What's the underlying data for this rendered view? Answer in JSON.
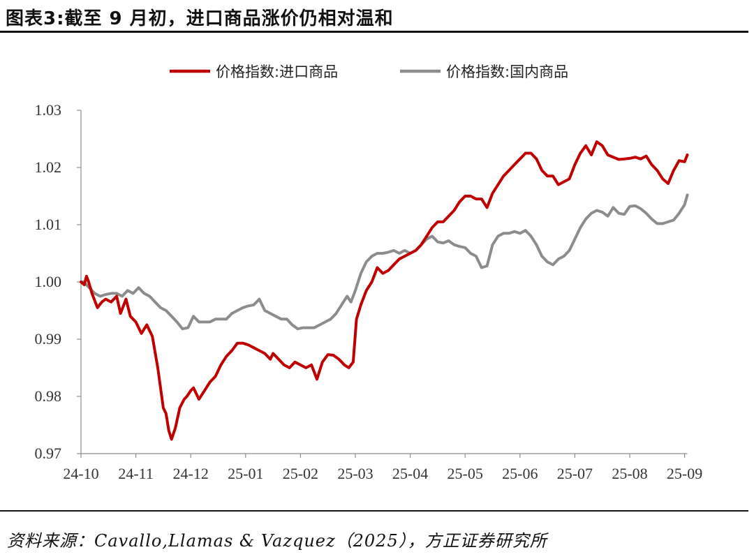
{
  "title": "图表3:截至 9 月初，进口商品涨价仍相对温和",
  "source": "资料来源：Cavallo,Llamas & Vazquez（2025），方正证券研究所",
  "chart_data": {
    "type": "line",
    "title": "图表3:截至 9 月初，进口商品涨价仍相对温和",
    "xlabel": "",
    "ylabel": "",
    "x_ticks": [
      "24-10",
      "24-11",
      "24-12",
      "25-01",
      "25-02",
      "25-03",
      "25-04",
      "25-05",
      "25-06",
      "25-07",
      "25-08",
      "25-09"
    ],
    "y_ticks": [
      "1.03",
      "1.02",
      "1.01",
      "1.00",
      "0.99",
      "0.98",
      "0.97"
    ],
    "ylim": [
      0.97,
      1.03
    ],
    "xlim": [
      0,
      11.05
    ],
    "legend_position": "top-center",
    "grid": false,
    "series": [
      {
        "name": "价格指数:进口商品",
        "color": "#C00000",
        "x": [
          0,
          0.06,
          0.1,
          0.14,
          0.2,
          0.3,
          0.38,
          0.45,
          0.55,
          0.65,
          0.72,
          0.82,
          0.9,
          1.0,
          1.1,
          1.2,
          1.3,
          1.4,
          1.5,
          1.55,
          1.6,
          1.65,
          1.72,
          1.8,
          1.88,
          1.93,
          2.0,
          2.05,
          2.15,
          2.25,
          2.35,
          2.45,
          2.55,
          2.65,
          2.75,
          2.85,
          2.95,
          3.05,
          3.15,
          3.25,
          3.35,
          3.45,
          3.5,
          3.6,
          3.7,
          3.8,
          3.9,
          4.0,
          4.1,
          4.2,
          4.3,
          4.4,
          4.5,
          4.6,
          4.7,
          4.8,
          4.88,
          4.96,
          5.02,
          5.1,
          5.2,
          5.3,
          5.4,
          5.5,
          5.6,
          5.7,
          5.8,
          5.9,
          6.0,
          6.1,
          6.2,
          6.3,
          6.4,
          6.5,
          6.6,
          6.7,
          6.8,
          6.9,
          7.0,
          7.1,
          7.2,
          7.3,
          7.4,
          7.5,
          7.6,
          7.7,
          7.8,
          7.9,
          8.0,
          8.1,
          8.2,
          8.3,
          8.4,
          8.5,
          8.6,
          8.7,
          8.8,
          8.9,
          9.0,
          9.1,
          9.2,
          9.3,
          9.4,
          9.5,
          9.6,
          9.7,
          9.8,
          9.9,
          10.0,
          10.1,
          10.2,
          10.3,
          10.4,
          10.5,
          10.6,
          10.7,
          10.8,
          10.9,
          11.0,
          11.05
        ],
        "values": [
          1.0,
          0.9995,
          1.001,
          1.0,
          0.998,
          0.9955,
          0.9965,
          0.997,
          0.9965,
          0.9975,
          0.9945,
          0.997,
          0.994,
          0.993,
          0.991,
          0.9925,
          0.9905,
          0.985,
          0.978,
          0.977,
          0.974,
          0.9725,
          0.9745,
          0.978,
          0.9795,
          0.98,
          0.981,
          0.9815,
          0.9795,
          0.981,
          0.9825,
          0.9835,
          0.9855,
          0.987,
          0.988,
          0.9893,
          0.9893,
          0.989,
          0.9885,
          0.988,
          0.9875,
          0.9865,
          0.9875,
          0.9865,
          0.9855,
          0.985,
          0.986,
          0.9855,
          0.985,
          0.9855,
          0.983,
          0.986,
          0.9873,
          0.9872,
          0.9865,
          0.9855,
          0.985,
          0.986,
          0.9935,
          0.996,
          0.9985,
          1.0,
          1.0025,
          1.0015,
          1.002,
          1.003,
          1.004,
          1.0045,
          1.005,
          1.0055,
          1.0065,
          1.008,
          1.0095,
          1.0105,
          1.0105,
          1.0115,
          1.0125,
          1.014,
          1.015,
          1.015,
          1.0145,
          1.0145,
          1.013,
          1.0155,
          1.017,
          1.0185,
          1.0195,
          1.0205,
          1.0215,
          1.0225,
          1.0225,
          1.0215,
          1.0195,
          1.0185,
          1.0185,
          1.017,
          1.0175,
          1.018,
          1.0205,
          1.0225,
          1.0238,
          1.0222,
          1.0245,
          1.0238,
          1.0222,
          1.0218,
          1.0214,
          1.0215,
          1.0216,
          1.0218,
          1.0215,
          1.022,
          1.0205,
          1.0195,
          1.018,
          1.0172,
          1.0195,
          1.0212,
          1.021,
          1.0222
        ]
      },
      {
        "name": "价格指数:国内商品",
        "color": "#8C8C8C",
        "x": [
          0,
          0.05,
          0.1,
          0.15,
          0.25,
          0.35,
          0.45,
          0.55,
          0.65,
          0.75,
          0.85,
          0.95,
          1.05,
          1.15,
          1.25,
          1.35,
          1.45,
          1.55,
          1.65,
          1.75,
          1.85,
          1.95,
          2.05,
          2.15,
          2.25,
          2.35,
          2.45,
          2.55,
          2.65,
          2.75,
          2.85,
          2.95,
          3.05,
          3.15,
          3.25,
          3.35,
          3.45,
          3.55,
          3.65,
          3.75,
          3.85,
          3.95,
          4.05,
          4.15,
          4.25,
          4.35,
          4.45,
          4.55,
          4.65,
          4.75,
          4.85,
          4.92,
          5.0,
          5.1,
          5.2,
          5.3,
          5.4,
          5.5,
          5.6,
          5.7,
          5.8,
          5.9,
          6.0,
          6.1,
          6.2,
          6.3,
          6.4,
          6.5,
          6.6,
          6.7,
          6.8,
          6.9,
          7.0,
          7.1,
          7.2,
          7.3,
          7.4,
          7.5,
          7.6,
          7.7,
          7.8,
          7.9,
          8.0,
          8.1,
          8.2,
          8.3,
          8.4,
          8.5,
          8.6,
          8.7,
          8.8,
          8.9,
          9.0,
          9.1,
          9.2,
          9.3,
          9.4,
          9.5,
          9.6,
          9.7,
          9.8,
          9.9,
          10.0,
          10.1,
          10.2,
          10.3,
          10.4,
          10.5,
          10.6,
          10.7,
          10.8,
          10.9,
          11.0,
          11.05
        ],
        "values": [
          1.0,
          1.0,
          0.9995,
          0.999,
          0.998,
          0.9975,
          0.9978,
          0.998,
          0.998,
          0.9975,
          0.9985,
          0.998,
          0.999,
          0.998,
          0.9975,
          0.9965,
          0.9955,
          0.995,
          0.994,
          0.993,
          0.9918,
          0.992,
          0.994,
          0.993,
          0.993,
          0.993,
          0.9935,
          0.9935,
          0.9935,
          0.9945,
          0.995,
          0.9955,
          0.9958,
          0.996,
          0.997,
          0.995,
          0.9945,
          0.994,
          0.9935,
          0.9935,
          0.9925,
          0.9918,
          0.992,
          0.992,
          0.992,
          0.9925,
          0.993,
          0.9935,
          0.9945,
          0.996,
          0.9975,
          0.9965,
          0.9985,
          1.0015,
          1.0035,
          1.0045,
          1.005,
          1.005,
          1.0052,
          1.0055,
          1.005,
          1.0055,
          1.005,
          1.0055,
          1.0065,
          1.0075,
          1.008,
          1.007,
          1.0068,
          1.0072,
          1.0065,
          1.0062,
          1.006,
          1.005,
          1.0045,
          1.0025,
          1.0028,
          1.0065,
          1.008,
          1.0085,
          1.0085,
          1.0088,
          1.0085,
          1.009,
          1.008,
          1.0065,
          1.0045,
          1.0035,
          1.003,
          1.004,
          1.0045,
          1.0055,
          1.0075,
          1.0095,
          1.011,
          1.012,
          1.0125,
          1.0122,
          1.0115,
          1.013,
          1.012,
          1.0118,
          1.0132,
          1.0133,
          1.0128,
          1.012,
          1.011,
          1.0102,
          1.0102,
          1.0105,
          1.0108,
          1.012,
          1.0135,
          1.0152
        ]
      }
    ]
  }
}
